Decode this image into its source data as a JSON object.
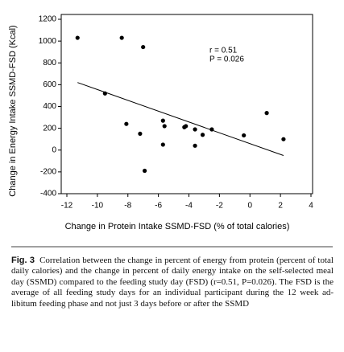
{
  "chart_data": {
    "type": "scatter",
    "xlabel": "Change in Protein Intake SSMD-FSD (% of total calories)",
    "ylabel": "Change in Energy Intake SSMD-FSD (Kcal)",
    "annotations": [
      "r = 0.51",
      "P = 0.026"
    ],
    "x": [
      -11.3,
      -8.4,
      -7.0,
      -9.5,
      -8.1,
      -7.2,
      -6.9,
      -5.7,
      -5.6,
      -5.7,
      -4.3,
      -4.2,
      -3.6,
      -3.6,
      -3.1,
      -2.5,
      -0.4,
      1.1,
      2.2
    ],
    "values": [
      1030,
      1030,
      945,
      520,
      240,
      150,
      -190,
      270,
      220,
      50,
      210,
      220,
      190,
      40,
      140,
      190,
      135,
      340,
      100
    ],
    "color": "#000000",
    "fit": {
      "x": [
        -11.3,
        2.2
      ],
      "y": [
        620,
        -50
      ]
    },
    "xlim": [
      -12,
      4
    ],
    "xticks": [
      -12,
      -10,
      -8,
      -6,
      -4,
      -2,
      0,
      2,
      4
    ],
    "ylim": [
      -400,
      1200
    ],
    "yticks": [
      -400,
      -200,
      0,
      200,
      400,
      600,
      800,
      1000,
      1200
    ]
  },
  "caption": {
    "label": "Fig. 3",
    "text": "Correlation between the change in percent of energy from protein (percent of total daily calories) and the change in percent of daily energy intake on the self-selected meal day (SSMD) compared to the feeding study day (FSD) (r=0.51, P=0.026). The FSD is the average of all feeding study days for an individual participant during the 12 week ad-libitum feeding phase and not just 3 days before or after the SSMD"
  }
}
